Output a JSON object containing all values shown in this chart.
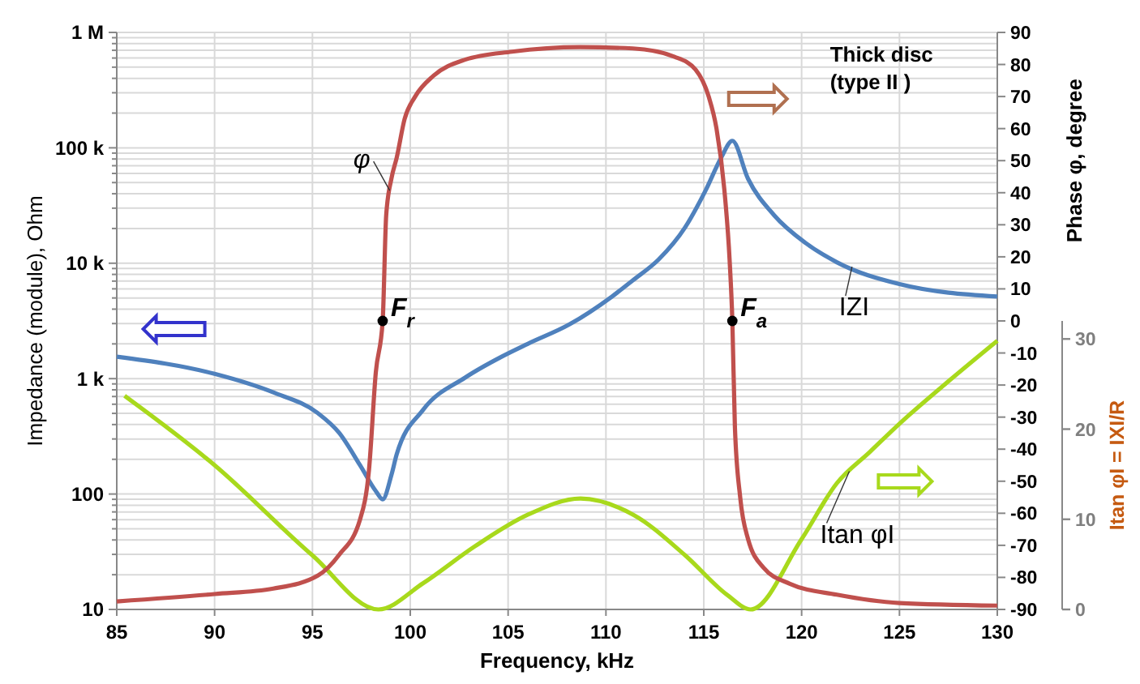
{
  "chart_data": {
    "type": "line",
    "xlabel": "Frequency, kHz",
    "ylabel": "Impedance (module), Ohm",
    "y2label": "Phase φ, degree",
    "y3label": "Itan φI = IXI/R",
    "log": "y",
    "grid": true,
    "xlim": [
      85,
      130
    ],
    "xticks": [
      85,
      90,
      95,
      100,
      105,
      110,
      115,
      120,
      125,
      130
    ],
    "ylim": [
      10,
      1000000
    ],
    "yticks": [
      10,
      {
        "value": 20,
        "label": null
      },
      {
        "value": 30,
        "label": null
      },
      {
        "value": 40,
        "label": null
      },
      {
        "value": 50,
        "label": null
      },
      {
        "value": 60,
        "label": null
      },
      {
        "value": 70,
        "label": null
      },
      {
        "value": 80,
        "label": null
      },
      {
        "value": 90,
        "label": null
      },
      100,
      {
        "value": 200,
        "label": null
      },
      {
        "value": 300,
        "label": null
      },
      {
        "value": 400,
        "label": null
      },
      {
        "value": 500,
        "label": null
      },
      {
        "value": 600,
        "label": null
      },
      {
        "value": 700,
        "label": null
      },
      {
        "value": 800,
        "label": null
      },
      {
        "value": 900,
        "label": null
      },
      {
        "value": 1000,
        "label": "1 k"
      },
      {
        "value": 2000,
        "label": null
      },
      {
        "value": 3000,
        "label": null
      },
      {
        "value": 4000,
        "label": null
      },
      {
        "value": 5000,
        "label": null
      },
      {
        "value": 6000,
        "label": null
      },
      {
        "value": 7000,
        "label": null
      },
      {
        "value": 8000,
        "label": null
      },
      {
        "value": 9000,
        "label": null
      },
      {
        "value": 10000,
        "label": "10 k"
      },
      {
        "value": 20000,
        "label": null
      },
      {
        "value": 30000,
        "label": null
      },
      {
        "value": 40000,
        "label": null
      },
      {
        "value": 50000,
        "label": null
      },
      {
        "value": 60000,
        "label": null
      },
      {
        "value": 70000,
        "label": null
      },
      {
        "value": 80000,
        "label": null
      },
      {
        "value": 90000,
        "label": null
      },
      {
        "value": 100000,
        "label": "100 k"
      },
      {
        "value": 200000,
        "label": null
      },
      {
        "value": 300000,
        "label": null
      },
      {
        "value": 400000,
        "label": null
      },
      {
        "value": 500000,
        "label": null
      },
      {
        "value": 600000,
        "label": null
      },
      {
        "value": 700000,
        "label": null
      },
      {
        "value": 800000,
        "label": null
      },
      {
        "value": 900000,
        "label": null
      },
      {
        "value": 1000000,
        "label": "1 M"
      }
    ],
    "y2lim": [
      -90,
      90
    ],
    "y2ticks": [
      -90,
      -80,
      -70,
      -60,
      -50,
      -40,
      -30,
      -20,
      -10,
      0,
      10,
      20,
      30,
      40,
      50,
      60,
      70,
      80,
      90
    ],
    "y3lim": [
      0,
      32
    ],
    "y3ticks": [
      0,
      10,
      20,
      30
    ],
    "series": [
      {
        "name": "Itan φI",
        "color": "#a8d91c",
        "axis": "y3",
        "x": [
          85.4,
          90,
          95,
          98.37,
          100.65,
          103.3,
          106,
          108.7,
          111.4,
          114.05,
          116.2,
          117.4,
          120,
          121.8,
          123.5,
          125,
          127.5,
          130
        ],
        "values": [
          23.7,
          16,
          6,
          0,
          2.9,
          7,
          10.5,
          12.3,
          10.5,
          6,
          1.6,
          0,
          7.8,
          14,
          17.5,
          20.6,
          25.3,
          29.8
        ]
      },
      {
        "name": "IZI",
        "color": "#4f81bd",
        "axis": "y",
        "x": [
          85,
          90,
          93,
          95.29,
          96.36,
          97.43,
          98.24,
          98.59,
          99.04,
          99.31,
          100.65,
          102.8,
          104.67,
          106,
          108.15,
          110.3,
          111.37,
          112.7,
          114.05,
          115.1,
          115.9,
          116.46,
          117.26,
          118.6,
          120.2,
          121.8,
          125,
          130
        ],
        "values": [
          1550,
          1100,
          760,
          500,
          340,
          178,
          106,
          90,
          147,
          222,
          535,
          1020,
          1550,
          2000,
          2960,
          5130,
          7100,
          10800,
          20500,
          43000,
          83000,
          115000,
          54000,
          26000,
          15000,
          10200,
          6600,
          5150
        ]
      },
      {
        "name": "φ",
        "color": "#c0504d",
        "axis": "y2",
        "x": [
          85,
          90,
          93,
          95.29,
          96.36,
          97.43,
          97.89,
          98.24,
          98.59,
          98.77,
          99.04,
          99.31,
          99.71,
          100.25,
          101.19,
          102.8,
          105.2,
          108.69,
          111.37,
          113.51,
          114.58,
          115.25,
          115.65,
          116.05,
          116.32,
          116.46,
          116.59,
          116.86,
          117.26,
          118.06,
          119.4,
          121.8,
          125,
          130
        ],
        "values": [
          -87.5,
          -85.2,
          -83.5,
          -79.4,
          -73,
          -62,
          -46.5,
          -16,
          0,
          33,
          44.5,
          51,
          63,
          70,
          76.5,
          81.5,
          84,
          85.4,
          85,
          82.4,
          78.4,
          70,
          60,
          41,
          19,
          0,
          -33,
          -55,
          -68,
          -77,
          -82,
          -85.4,
          -88,
          -88.8
        ]
      },
      {
        "type": "scatter",
        "color": "#000000",
        "axis": "y2",
        "x": [
          98.59,
          116.46
        ],
        "values": [
          0,
          0
        ]
      }
    ],
    "annotations": [
      "Thick disc\n(type II )",
      "F$_{r}$",
      "F$_{a}$"
    ]
  }
}
